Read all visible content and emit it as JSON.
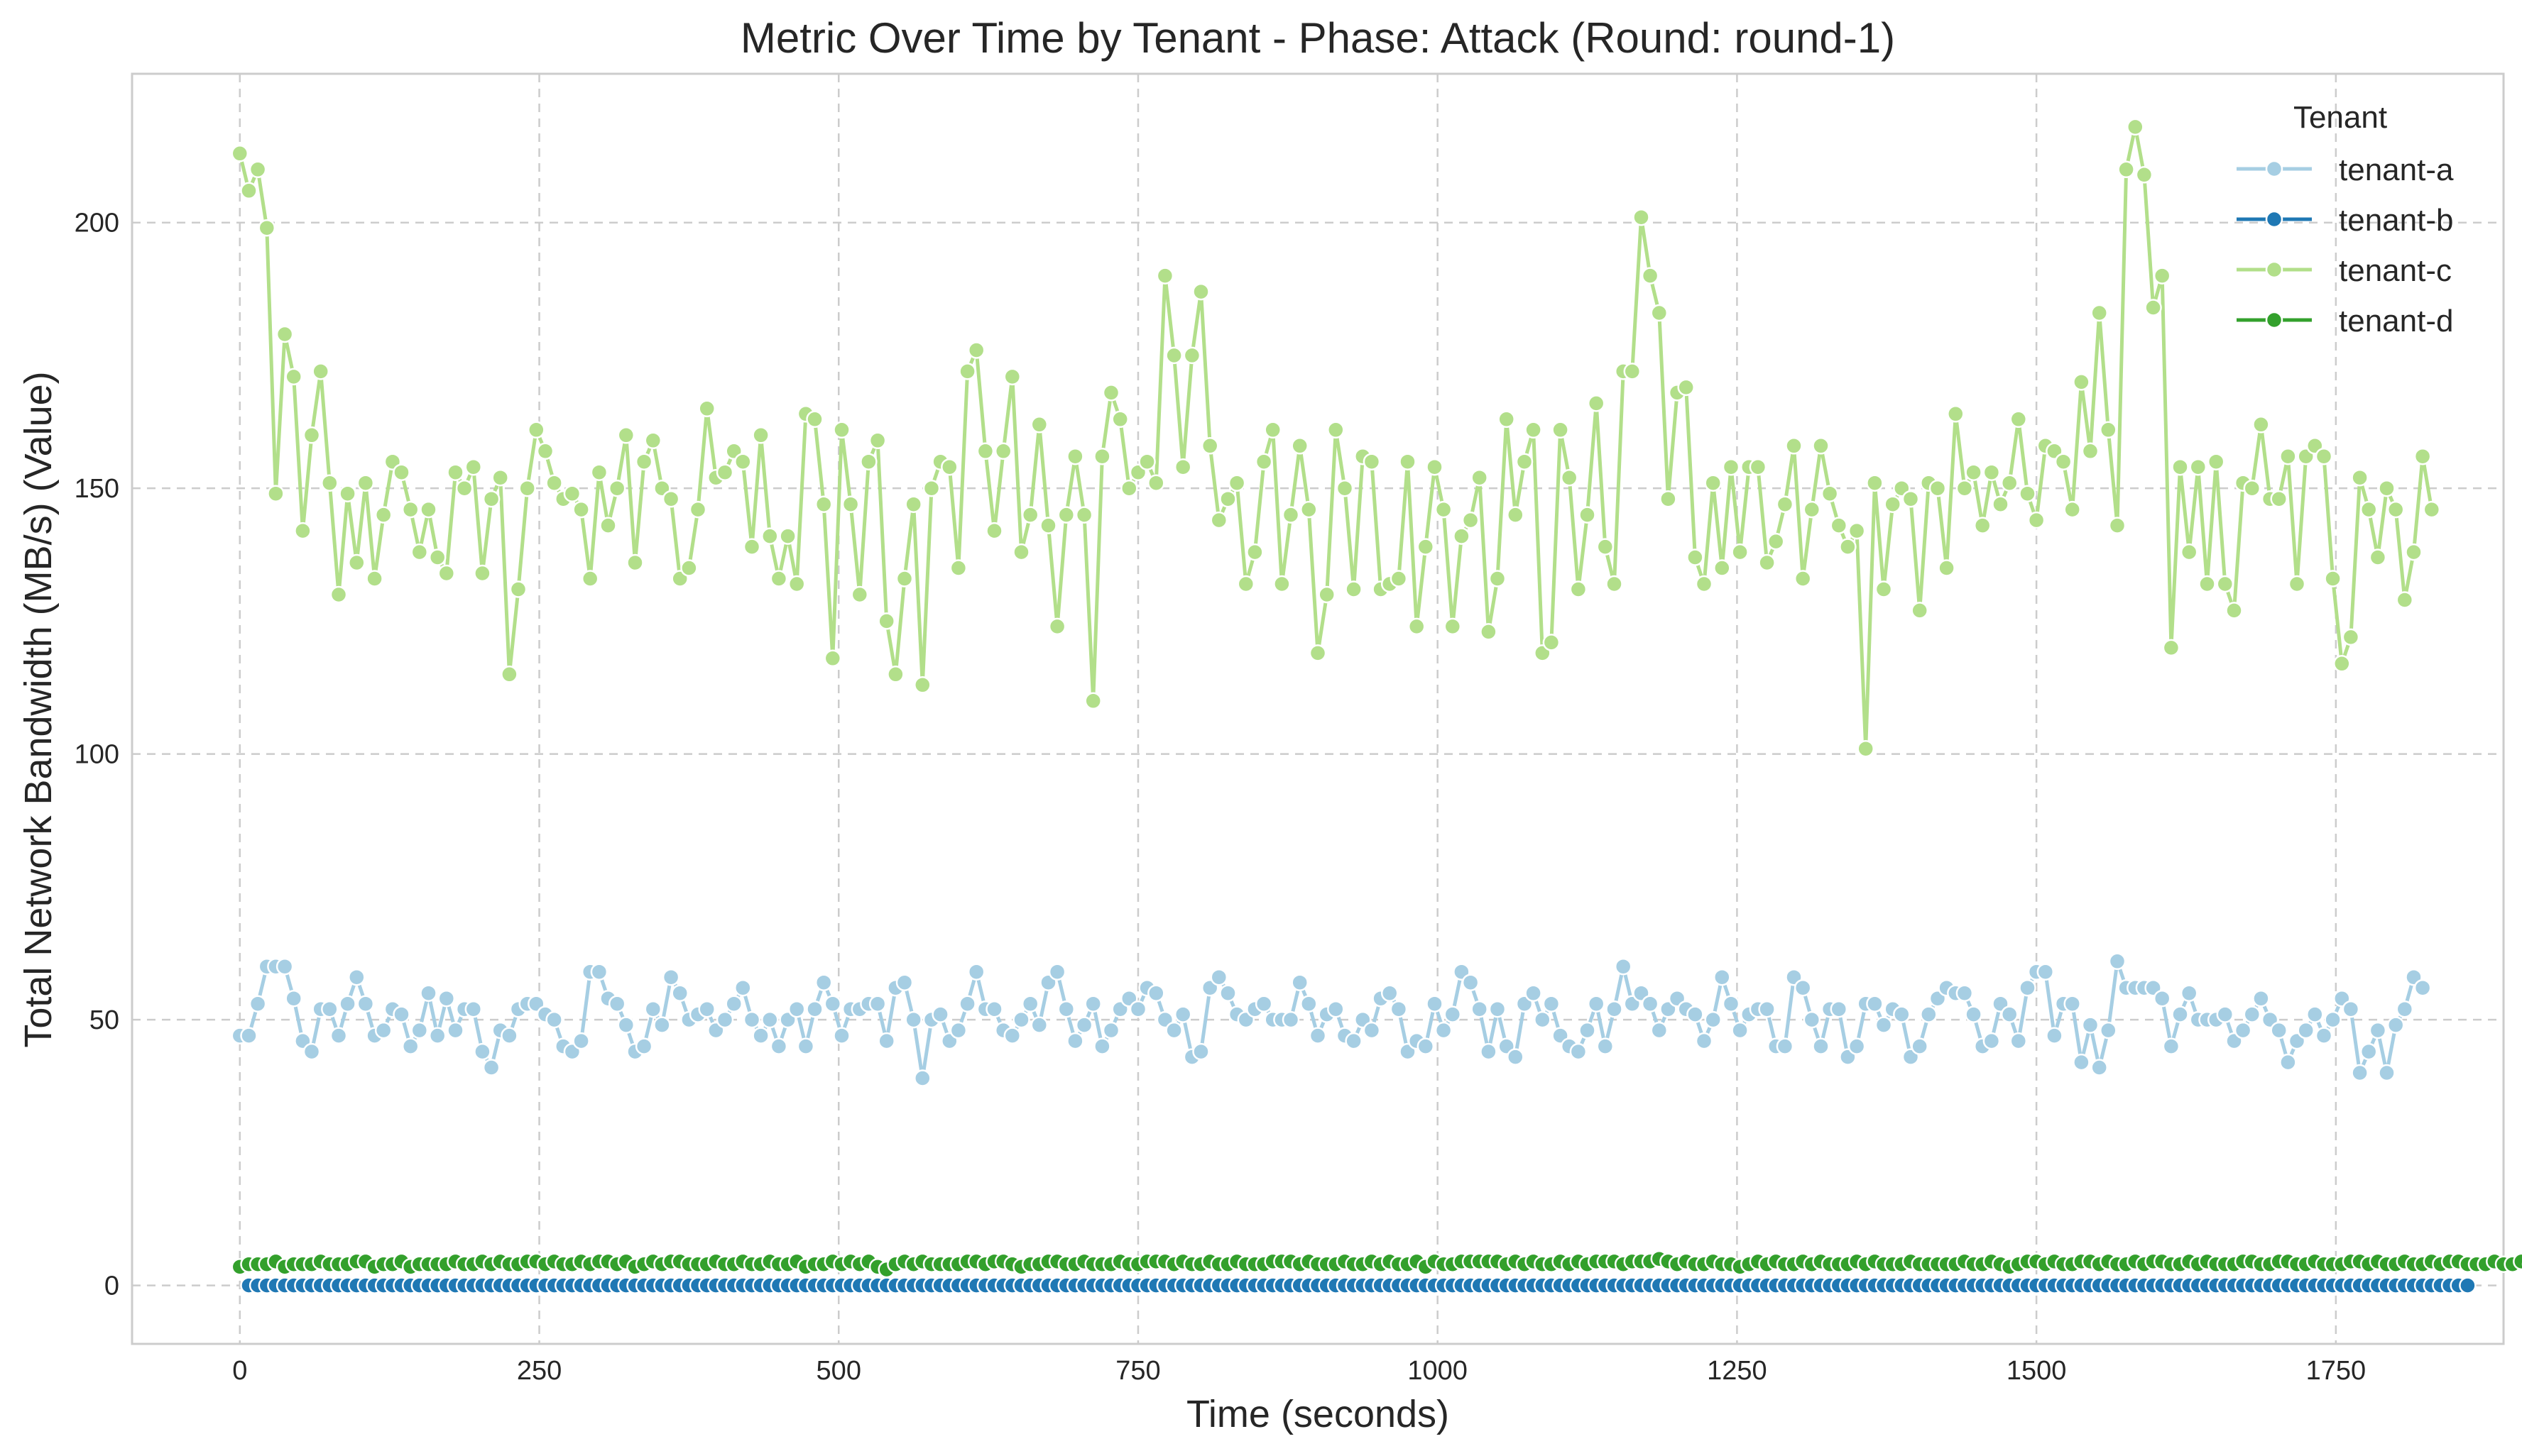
{
  "chart_data": {
    "type": "line",
    "title": "Metric Over Time by Tenant - Phase: Attack (Round: round-1)",
    "xlabel": "Time (seconds)",
    "ylabel": "Total Network Bandwidth (MB/s) (Value)",
    "xlim": [
      -90,
      1890
    ],
    "ylim": [
      -11,
      228
    ],
    "xticks": [
      0,
      250,
      500,
      750,
      1000,
      1250,
      1500,
      1750
    ],
    "yticks": [
      0,
      50,
      100,
      150,
      200
    ],
    "grid": true,
    "marker": "circle",
    "legend": {
      "title": "Tenant",
      "position": "top-right"
    },
    "x_start": 0,
    "x_step": 7.5,
    "series": [
      {
        "name": "tenant-a",
        "color": "#a6cee3",
        "values": [
          47,
          47,
          53,
          60,
          60,
          60,
          54,
          46,
          44,
          52,
          52,
          47,
          53,
          58,
          53,
          47,
          48,
          52,
          51,
          45,
          48,
          55,
          47,
          54,
          48,
          52,
          52,
          44,
          41,
          48,
          47,
          52,
          53,
          53,
          51,
          50,
          45,
          44,
          46,
          59,
          59,
          54,
          53,
          49,
          44,
          45,
          52,
          49,
          58,
          55,
          50,
          51,
          52,
          48,
          50,
          53,
          56,
          50,
          47,
          50,
          45,
          50,
          52,
          45,
          52,
          57,
          53,
          47,
          52,
          52,
          53,
          53,
          46,
          56,
          57,
          50,
          39,
          50,
          51,
          46,
          48,
          53,
          59,
          52,
          52,
          48,
          47,
          50,
          53,
          49,
          57,
          59,
          52,
          46,
          49,
          53,
          45,
          48,
          52,
          54,
          52,
          56,
          55,
          50,
          48,
          51,
          43,
          44,
          56,
          58,
          55,
          51,
          50,
          52,
          53,
          50,
          50,
          50,
          57,
          53,
          47,
          51,
          52,
          47,
          46,
          50,
          48,
          54,
          55,
          52,
          44,
          46,
          45,
          53,
          48,
          51,
          59,
          57,
          52,
          44,
          52,
          45,
          43,
          53,
          55,
          50,
          53,
          47,
          45,
          44,
          48,
          53,
          45,
          52,
          60,
          53,
          55,
          53,
          48,
          52,
          54,
          52,
          51,
          46,
          50,
          58,
          53,
          48,
          51,
          52,
          52,
          45,
          45,
          58,
          56,
          50,
          45,
          52,
          52,
          43,
          45,
          53,
          53,
          49,
          52,
          51,
          43,
          45,
          51,
          54,
          56,
          55,
          55,
          51,
          45,
          46,
          53,
          51,
          46,
          56,
          59,
          59,
          47,
          53,
          53,
          42,
          49,
          41,
          48,
          61,
          56,
          56,
          56,
          56,
          54,
          45,
          51,
          55,
          50,
          50,
          50,
          51,
          46,
          48,
          51,
          54,
          50,
          48,
          42,
          46,
          48,
          51,
          47,
          50,
          54,
          52,
          40,
          44,
          48,
          40,
          49,
          52,
          58,
          56
        ]
      },
      {
        "name": "tenant-b",
        "color": "#1f78b4",
        "start_index": 1,
        "values": [
          0,
          0,
          0,
          0,
          0,
          0,
          0,
          0,
          0,
          0,
          0,
          0,
          0,
          0,
          0,
          0,
          0,
          0,
          0,
          0,
          0,
          0,
          0,
          0,
          0,
          0,
          0,
          0,
          0,
          0,
          0,
          0,
          0,
          0,
          0,
          0,
          0,
          0,
          0,
          0,
          0,
          0,
          0,
          0,
          0,
          0,
          0,
          0,
          0,
          0,
          0,
          0,
          0,
          0,
          0,
          0,
          0,
          0,
          0,
          0,
          0,
          0,
          0,
          0,
          0,
          0,
          0,
          0,
          0,
          0,
          0,
          0,
          0,
          0,
          0,
          0,
          0,
          0,
          0,
          0,
          0,
          0,
          0,
          0,
          0,
          0,
          0,
          0,
          0,
          0,
          0,
          0,
          0,
          0,
          0,
          0,
          0,
          0,
          0,
          0,
          0,
          0,
          0,
          0,
          0,
          0,
          0,
          0,
          0,
          0,
          0,
          0,
          0,
          0,
          0,
          0,
          0,
          0,
          0,
          0,
          0,
          0,
          0,
          0,
          0,
          0,
          0,
          0,
          0,
          0,
          0,
          0,
          0,
          0,
          0,
          0,
          0,
          0,
          0,
          0,
          0,
          0,
          0,
          0,
          0,
          0,
          0,
          0,
          0,
          0,
          0,
          0,
          0,
          0,
          0,
          0,
          0,
          0,
          0,
          0,
          0,
          0,
          0,
          0,
          0,
          0,
          0,
          0,
          0,
          0,
          0,
          0,
          0,
          0,
          0,
          0,
          0,
          0,
          0,
          0,
          0,
          0,
          0,
          0,
          0,
          0,
          0,
          0,
          0,
          0,
          0,
          0,
          0,
          0,
          0,
          0,
          0,
          0,
          0,
          0,
          0,
          0,
          0,
          0,
          0,
          0,
          0,
          0,
          0,
          0,
          0,
          0,
          0,
          0,
          0,
          0,
          0,
          0,
          0,
          0,
          0,
          0,
          0,
          0,
          0,
          0,
          0,
          0,
          0,
          0,
          0,
          0,
          0,
          0,
          0,
          0,
          0,
          0,
          0,
          0,
          0,
          0,
          0,
          0,
          0,
          0,
          0,
          0
        ]
      },
      {
        "name": "tenant-c",
        "color": "#b2df8a",
        "values": [
          213,
          206,
          210,
          199,
          149,
          179,
          171,
          142,
          160,
          172,
          151,
          130,
          149,
          136,
          151,
          133,
          145,
          155,
          153,
          146,
          138,
          146,
          137,
          134,
          153,
          150,
          154,
          134,
          148,
          152,
          115,
          131,
          150,
          161,
          157,
          151,
          148,
          149,
          146,
          133,
          153,
          143,
          150,
          160,
          136,
          155,
          159,
          150,
          148,
          133,
          135,
          146,
          165,
          152,
          153,
          157,
          155,
          139,
          160,
          141,
          133,
          141,
          132,
          164,
          163,
          147,
          118,
          161,
          147,
          130,
          155,
          159,
          125,
          115,
          133,
          147,
          113,
          150,
          155,
          154,
          135,
          172,
          176,
          157,
          142,
          157,
          171,
          138,
          145,
          162,
          143,
          124,
          145,
          156,
          145,
          110,
          156,
          168,
          163,
          150,
          153,
          155,
          151,
          190,
          175,
          154,
          175,
          187,
          158,
          144,
          148,
          151,
          132,
          138,
          155,
          161,
          132,
          145,
          158,
          146,
          119,
          130,
          161,
          150,
          131,
          156,
          155,
          131,
          132,
          133,
          155,
          124,
          139,
          154,
          146,
          124,
          141,
          144,
          152,
          123,
          133,
          163,
          145,
          155,
          161,
          119,
          121,
          161,
          152,
          131,
          145,
          166,
          139,
          132,
          172,
          172,
          201,
          190,
          183,
          148,
          168,
          169,
          137,
          132,
          151,
          135,
          154,
          138,
          154,
          154,
          136,
          140,
          147,
          158,
          133,
          146,
          158,
          149,
          143,
          139,
          142,
          101,
          151,
          131,
          147,
          150,
          148,
          127,
          151,
          150,
          135,
          164,
          150,
          153,
          143,
          153,
          147,
          151,
          163,
          149,
          144,
          158,
          157,
          155,
          146,
          170,
          157,
          183,
          161,
          143,
          210,
          218,
          209,
          184,
          190,
          120,
          154,
          138,
          154,
          132,
          155,
          132,
          127,
          151,
          150,
          162,
          148,
          148,
          156,
          132,
          156,
          158,
          156,
          133,
          117,
          122,
          152,
          146,
          137,
          150,
          146,
          129,
          138,
          156,
          146
        ]
      },
      {
        "name": "tenant-d",
        "color": "#33a02c",
        "values": [
          3.5,
          4,
          4,
          4,
          4.5,
          3.5,
          4,
          4,
          4,
          4.5,
          4,
          4,
          4,
          4.5,
          4.5,
          3.5,
          4,
          4,
          4.5,
          3.5,
          4,
          4,
          4,
          4,
          4.5,
          4,
          4,
          4.5,
          4,
          4.5,
          4,
          4,
          4.5,
          4.5,
          4,
          4.5,
          4,
          4,
          4.5,
          4,
          4.5,
          4.5,
          4,
          4.5,
          3.5,
          4,
          4.5,
          4,
          4.5,
          4.5,
          4,
          4,
          4,
          4.5,
          4,
          4,
          4.5,
          4,
          4,
          4.5,
          4,
          4,
          4.5,
          3.5,
          4,
          4,
          4.5,
          4,
          4.5,
          4,
          4.5,
          3.5,
          3,
          4,
          4.5,
          4,
          4.5,
          4,
          4,
          4,
          4,
          4.5,
          4.5,
          4,
          4.5,
          4.5,
          4,
          3.5,
          4,
          4,
          4.5,
          4.5,
          4,
          4,
          4.5,
          4,
          4,
          4,
          4.5,
          4,
          4,
          4.5,
          4.5,
          4.5,
          4,
          4.5,
          4,
          4,
          4.5,
          4,
          4,
          4.5,
          4,
          4,
          4,
          4.5,
          4.5,
          4.5,
          4,
          4.5,
          4,
          4,
          4,
          4.5,
          4,
          4,
          4.5,
          4,
          4.5,
          4,
          4,
          4.5,
          3.5,
          4.5,
          4,
          4,
          4.5,
          4.5,
          4.5,
          4.5,
          4.5,
          4,
          4.5,
          4,
          4.5,
          4,
          4,
          4.5,
          4,
          4.5,
          4,
          4.5,
          4.5,
          4.5,
          4,
          4.5,
          4.5,
          4.5,
          5,
          4.5,
          4,
          4.5,
          4,
          4,
          4.5,
          4,
          4,
          3.5,
          4,
          4.5,
          4,
          4.5,
          4,
          4,
          4.5,
          4,
          4.5,
          4,
          4,
          4,
          4.5,
          4,
          4.5,
          4,
          4,
          4,
          4.5,
          4,
          4,
          4,
          4,
          4,
          4.5,
          4,
          4,
          4.5,
          4,
          3.5,
          4,
          4.5,
          4.5,
          4,
          4.5,
          4,
          4,
          4.5,
          4.5,
          4,
          4.5,
          4,
          4,
          4.5,
          4,
          4.5,
          4.5,
          4,
          4,
          4.5,
          4,
          4.5,
          4,
          4,
          4,
          4.5,
          4.5,
          4,
          4,
          4.5,
          4.5,
          4,
          4,
          4.5,
          4,
          4,
          4,
          4.5,
          4.5,
          4,
          4.5,
          4,
          4,
          4.5,
          4,
          4,
          4.5,
          4,
          4.5,
          4.5,
          4,
          4,
          4,
          4.5,
          4,
          4,
          4.5,
          4,
          4.5,
          4,
          4.5,
          4,
          4.5,
          4,
          4.5,
          4
        ]
      }
    ]
  }
}
